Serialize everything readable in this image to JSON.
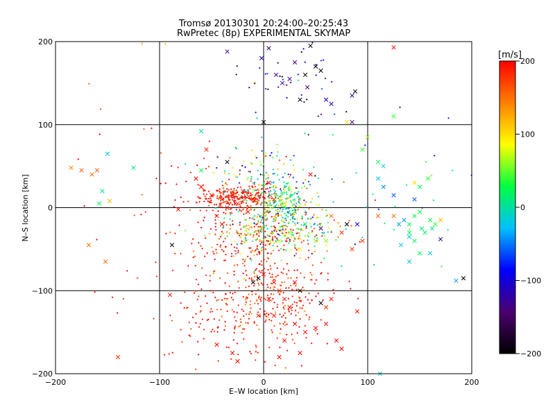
{
  "chart_data": {
    "type": "scatter",
    "title": "Tromsø 20130301 20:24:00–20:25:43",
    "subtitle": "RwPretec (8p) EXPERIMENTAL SKYMAP",
    "xlabel": "E–W location [km]",
    "ylabel": "N–S location [km]",
    "xlim": [
      -200,
      200
    ],
    "ylim": [
      -200,
      200
    ],
    "xticks": [
      -200,
      -100,
      0,
      100,
      200
    ],
    "yticks": [
      -200,
      -100,
      0,
      100,
      200
    ],
    "grid": true,
    "colorbar": {
      "label": "[m/s]",
      "range": [
        -200,
        200
      ],
      "ticks": [
        200,
        100,
        0,
        -100,
        -200
      ],
      "colormap": [
        "#000000",
        "#4b0070",
        "#0000ff",
        "#00c0ff",
        "#00ff40",
        "#ffff00",
        "#ff8000",
        "#ff0000"
      ]
    },
    "series": [
      {
        "marker": "x",
        "points": [
          [
            -160,
            45,
            160
          ],
          [
            -175,
            45,
            160
          ],
          [
            -165,
            40,
            150
          ],
          [
            -185,
            48,
            140
          ],
          [
            -150,
            65,
            -20
          ],
          [
            -148,
            8,
            120
          ],
          [
            -152,
            -65,
            150
          ],
          [
            -168,
            -45,
            150
          ],
          [
            -155,
            20,
            10
          ],
          [
            -158,
            5,
            20
          ],
          [
            -125,
            48,
            10
          ],
          [
            -60,
            92,
            0
          ],
          [
            -55,
            70,
            180
          ],
          [
            -90,
            -105,
            190
          ],
          [
            -82,
            -2,
            200
          ],
          [
            -88,
            -45,
            -200
          ],
          [
            -140,
            -180,
            180
          ],
          [
            -35,
            55,
            -200
          ],
          [
            -60,
            45,
            20
          ],
          [
            -35,
            188,
            -130
          ],
          [
            5,
            192,
            -160
          ],
          [
            -2,
            180,
            -120
          ],
          [
            18,
            150,
            -120
          ],
          [
            12,
            160,
            -130
          ],
          [
            25,
            155,
            -130
          ],
          [
            30,
            175,
            -140
          ],
          [
            40,
            160,
            -200
          ],
          [
            42,
            145,
            -150
          ],
          [
            50,
            170,
            -200
          ],
          [
            55,
            165,
            -200
          ],
          [
            35,
            130,
            -200
          ],
          [
            60,
            130,
            -110
          ],
          [
            65,
            125,
            -120
          ],
          [
            88,
            140,
            -200
          ],
          [
            85,
            135,
            -110
          ],
          [
            45,
            195,
            -200
          ],
          [
            0,
            103,
            -200
          ],
          [
            85,
            103,
            -140
          ],
          [
            125,
            193,
            200
          ],
          [
            125,
            110,
            40
          ],
          [
            100,
            85,
            60
          ],
          [
            95,
            70,
            40
          ],
          [
            80,
            103,
            100
          ],
          [
            110,
            55,
            20
          ],
          [
            115,
            50,
            -20
          ],
          [
            110,
            35,
            -20
          ],
          [
            115,
            25,
            -40
          ],
          [
            125,
            15,
            -60
          ],
          [
            145,
            10,
            -60
          ],
          [
            150,
            25,
            20
          ],
          [
            158,
            35,
            40
          ],
          [
            145,
            30,
            100
          ],
          [
            135,
            -15,
            -40
          ],
          [
            140,
            -20,
            20
          ],
          [
            145,
            -10,
            20
          ],
          [
            150,
            -5,
            30
          ],
          [
            152,
            -25,
            10
          ],
          [
            160,
            -15,
            30
          ],
          [
            155,
            -30,
            20
          ],
          [
            162,
            -25,
            10
          ],
          [
            145,
            -40,
            20
          ],
          [
            140,
            -35,
            -20
          ],
          [
            130,
            -20,
            -40
          ],
          [
            125,
            -10,
            -40
          ],
          [
            165,
            -20,
            40
          ],
          [
            170,
            -38,
            -120
          ],
          [
            150,
            -55,
            20
          ],
          [
            140,
            -65,
            -20
          ],
          [
            160,
            -55,
            -20
          ],
          [
            132,
            -45,
            -20
          ],
          [
            170,
            -15,
            120
          ],
          [
            192,
            -85,
            -200
          ],
          [
            185,
            -88,
            -40
          ],
          [
            112,
            -200,
            -20
          ],
          [
            110,
            -10,
            160
          ],
          [
            125,
            -10,
            140
          ],
          [
            140,
            -30,
            20
          ],
          [
            -40,
            10,
            190
          ],
          [
            -30,
            15,
            190
          ],
          [
            -25,
            5,
            180
          ],
          [
            -35,
            0,
            200
          ],
          [
            -45,
            -10,
            190
          ],
          [
            -15,
            -5,
            190
          ],
          [
            -10,
            10,
            185
          ],
          [
            10,
            10,
            170
          ],
          [
            20,
            5,
            100
          ],
          [
            30,
            -5,
            40
          ],
          [
            40,
            -20,
            20
          ],
          [
            25,
            -30,
            60
          ],
          [
            15,
            -40,
            70
          ],
          [
            35,
            -50,
            80
          ],
          [
            50,
            -40,
            60
          ],
          [
            45,
            40,
            200
          ],
          [
            55,
            -25,
            -140
          ],
          [
            60,
            -40,
            60
          ],
          [
            65,
            -10,
            150
          ],
          [
            75,
            -30,
            180
          ],
          [
            80,
            -20,
            -200
          ],
          [
            90,
            -20,
            -100
          ],
          [
            95,
            -40,
            180
          ],
          [
            85,
            -50,
            180
          ],
          [
            0,
            -80,
            200
          ],
          [
            10,
            -90,
            200
          ],
          [
            15,
            -100,
            190
          ],
          [
            5,
            -110,
            200
          ],
          [
            20,
            -110,
            190
          ],
          [
            35,
            -100,
            -200
          ],
          [
            55,
            -115,
            -200
          ],
          [
            60,
            -120,
            180
          ],
          [
            -5,
            -130,
            180
          ],
          [
            10,
            -130,
            190
          ],
          [
            30,
            -140,
            200
          ],
          [
            40,
            -150,
            200
          ],
          [
            50,
            -145,
            200
          ],
          [
            60,
            -140,
            200
          ],
          [
            20,
            -160,
            200
          ],
          [
            70,
            -160,
            200
          ],
          [
            75,
            -170,
            200
          ],
          [
            -30,
            -175,
            200
          ],
          [
            -25,
            -185,
            200
          ],
          [
            15,
            -180,
            200
          ],
          [
            35,
            -175,
            200
          ],
          [
            -45,
            -165,
            200
          ],
          [
            -10,
            -90,
            -200
          ],
          [
            -5,
            -85,
            -200
          ],
          [
            65,
            -110,
            190
          ],
          [
            90,
            -125,
            190
          ],
          [
            30,
            -90,
            200
          ],
          [
            25,
            -120,
            200
          ],
          [
            5,
            30,
            200
          ],
          [
            -20,
            20,
            180
          ],
          [
            -40,
            -20,
            200
          ],
          [
            -50,
            15,
            190
          ],
          [
            -60,
            25,
            200
          ],
          [
            -65,
            35,
            200
          ]
        ]
      },
      {
        "marker": "dot",
        "clusters": [
          {
            "center": [
              -25,
              12
            ],
            "spread": [
              18,
              7
            ],
            "count": 260,
            "v_mean": 190,
            "v_sd": 15
          },
          {
            "center": [
              15,
              8
            ],
            "spread": [
              15,
              12
            ],
            "count": 200,
            "v_mean": 30,
            "v_sd": 60
          },
          {
            "center": [
              0,
              -30
            ],
            "spread": [
              20,
              15
            ],
            "count": 260,
            "v_mean": 100,
            "v_sd": 90
          },
          {
            "center": [
              35,
              -25
            ],
            "spread": [
              22,
              15
            ],
            "count": 120,
            "v_mean": 50,
            "v_sd": 80
          },
          {
            "center": [
              5,
              -100
            ],
            "spread": [
              30,
              35
            ],
            "count": 340,
            "v_mean": 185,
            "v_sd": 30
          },
          {
            "center": [
              -30,
              -130
            ],
            "spread": [
              35,
              30
            ],
            "count": 100,
            "v_mean": 190,
            "v_sd": 20
          },
          {
            "center": [
              0,
              35
            ],
            "spread": [
              25,
              20
            ],
            "count": 150,
            "v_mean": 20,
            "v_sd": 90
          },
          {
            "center": [
              -60,
              -20
            ],
            "spread": [
              25,
              40
            ],
            "count": 80,
            "v_mean": 190,
            "v_sd": 20
          },
          {
            "center": [
              20,
              140
            ],
            "spread": [
              25,
              30
            ],
            "count": 40,
            "v_mean": -120,
            "v_sd": 60
          },
          {
            "center": [
              -120,
              30
            ],
            "spread": [
              40,
              70
            ],
            "count": 25,
            "v_mean": 180,
            "v_sd": 30
          },
          {
            "center": [
              120,
              20
            ],
            "spread": [
              40,
              60
            ],
            "count": 30,
            "v_mean": 10,
            "v_sd": 100
          }
        ]
      }
    ]
  }
}
